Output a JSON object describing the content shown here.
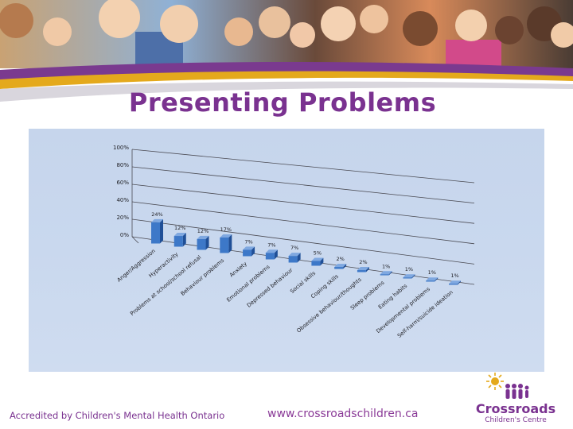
{
  "slide": {
    "title": "Presenting Problems",
    "footer_accreditation": "Accredited by Children's Mental Health Ontario",
    "footer_url": "www.crossroadschildren.ca",
    "logo_name": "Crossroads",
    "logo_subtitle": "Children's Centre",
    "colors": {
      "title": "#7a3290",
      "accent_gold": "#e4a91c",
      "bar": "#3d78c8",
      "chart_bg": "#c8d7ee"
    }
  },
  "chart_data": {
    "type": "bar",
    "categories": [
      "Anger/Aggression",
      "Hyperactivity",
      "Problems at school/school refusal",
      "Behaviour problems",
      "Anxiety",
      "Emotional problems",
      "Depressed behaviour",
      "Social skills",
      "Coping skills",
      "Obsessive behaviour/thoughts",
      "Sleep problems",
      "Eating habits",
      "Developmental problems",
      "Self-harm/suicide ideation"
    ],
    "values": [
      24,
      12,
      12,
      17,
      7,
      7,
      7,
      5,
      2,
      2,
      1,
      1,
      1,
      1
    ],
    "value_labels": [
      "24%",
      "12%",
      "12%",
      "17%",
      "7%",
      "7%",
      "7%",
      "5%",
      "2%",
      "2%",
      "1%",
      "1%",
      "1%",
      "1%"
    ],
    "y_ticks": [
      "0%",
      "20%",
      "40%",
      "60%",
      "80%",
      "100%"
    ],
    "ylim": [
      0,
      100
    ],
    "grid": true,
    "three_d": true
  }
}
